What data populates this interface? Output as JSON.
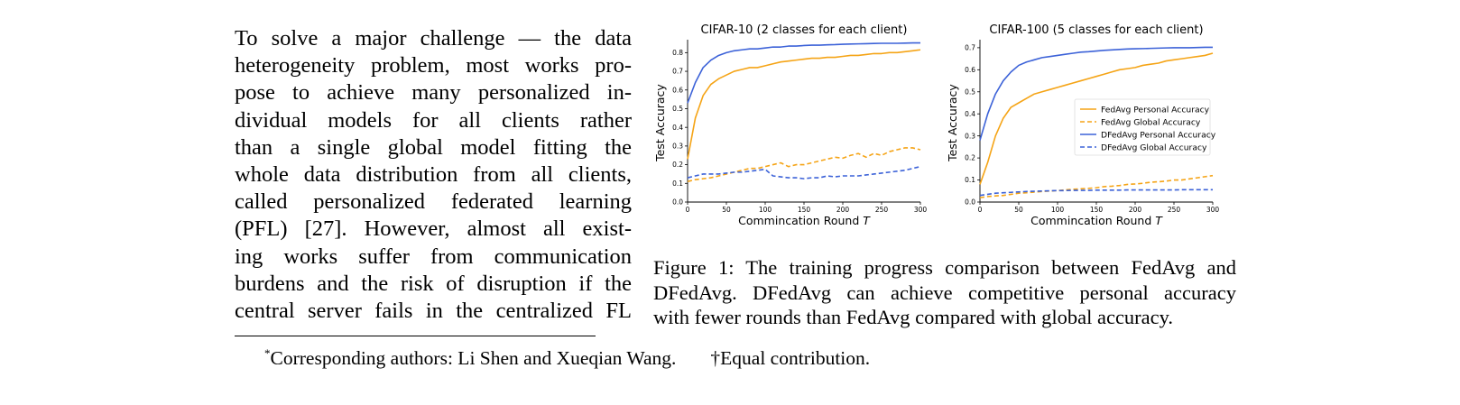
{
  "body": {
    "lines": [
      "To solve a major challenge — the data",
      "heterogeneity problem, most works pro-",
      "pose to achieve many personalized in-",
      "dividual models for all clients rather",
      "than a single global model fitting the",
      "whole data distribution from all clients,",
      "called personalized federated learning",
      "(PFL) [27].  However, almost all exist-",
      "ing works suffer from communication",
      "burdens and the risk of disruption if the",
      "central server fails in the centralized FL"
    ]
  },
  "caption": {
    "lines": [
      "Figure 1: The training progress comparison between FedAvg and",
      "DFedAvg. DFedAvg can achieve competitive personal accuracy",
      "with fewer rounds than FedAvg compared with global accuracy."
    ]
  },
  "footnote": {
    "marker": "*",
    "text": "Corresponding authors: Li Shen and Xueqian Wang.",
    "equal": "†Equal contribution."
  },
  "colors": {
    "fedavg": "#f5a416",
    "dfedavg": "#3c62d8"
  },
  "chart_data": [
    {
      "type": "line",
      "title": "CIFAR-10 (2 classes for each client)",
      "xlabel": "Commincation Round T",
      "ylabel": "Test Accuracy",
      "xlim": [
        0,
        300
      ],
      "ylim": [
        0,
        0.85
      ],
      "xticks": [
        0,
        50,
        100,
        150,
        200,
        250,
        300
      ],
      "yticks": [
        0.0,
        0.1,
        0.2,
        0.3,
        0.4,
        0.5,
        0.6,
        0.7,
        0.8
      ],
      "x": [
        0,
        10,
        20,
        30,
        40,
        50,
        60,
        70,
        80,
        90,
        100,
        110,
        120,
        130,
        140,
        150,
        160,
        170,
        180,
        190,
        200,
        210,
        220,
        230,
        240,
        250,
        260,
        270,
        280,
        290,
        300
      ],
      "series": [
        {
          "name": "FedAvg Personal Accuracy",
          "style": "solid",
          "color": "#f5a416",
          "values": [
            0.23,
            0.45,
            0.57,
            0.63,
            0.66,
            0.68,
            0.7,
            0.71,
            0.72,
            0.72,
            0.73,
            0.74,
            0.75,
            0.755,
            0.76,
            0.765,
            0.77,
            0.77,
            0.775,
            0.775,
            0.78,
            0.785,
            0.785,
            0.79,
            0.795,
            0.795,
            0.8,
            0.8,
            0.805,
            0.81,
            0.815
          ]
        },
        {
          "name": "FedAvg Global Accuracy",
          "style": "dashed",
          "color": "#f5a416",
          "values": [
            0.11,
            0.12,
            0.125,
            0.13,
            0.14,
            0.15,
            0.16,
            0.17,
            0.18,
            0.18,
            0.19,
            0.2,
            0.21,
            0.19,
            0.2,
            0.2,
            0.21,
            0.22,
            0.23,
            0.24,
            0.235,
            0.25,
            0.26,
            0.24,
            0.26,
            0.25,
            0.27,
            0.28,
            0.29,
            0.29,
            0.28
          ]
        },
        {
          "name": "DFedAvg Personal Accuracy",
          "style": "solid",
          "color": "#3c62d8",
          "values": [
            0.53,
            0.64,
            0.72,
            0.76,
            0.785,
            0.8,
            0.81,
            0.815,
            0.82,
            0.82,
            0.825,
            0.83,
            0.83,
            0.835,
            0.835,
            0.838,
            0.84,
            0.84,
            0.842,
            0.843,
            0.845,
            0.846,
            0.847,
            0.848,
            0.849,
            0.85,
            0.85,
            0.85,
            0.851,
            0.852,
            0.852
          ]
        },
        {
          "name": "DFedAvg Global Accuracy",
          "style": "dashed",
          "color": "#3c62d8",
          "values": [
            0.13,
            0.14,
            0.15,
            0.15,
            0.15,
            0.155,
            0.16,
            0.16,
            0.165,
            0.17,
            0.175,
            0.14,
            0.135,
            0.13,
            0.13,
            0.125,
            0.13,
            0.13,
            0.14,
            0.135,
            0.14,
            0.14,
            0.14,
            0.145,
            0.15,
            0.155,
            0.16,
            0.165,
            0.17,
            0.18,
            0.19
          ]
        }
      ]
    },
    {
      "type": "line",
      "title": "CIFAR-100 (5 classes for each client)",
      "xlabel": "Commincation Round T",
      "ylabel": "Test Accuracy",
      "xlim": [
        0,
        300
      ],
      "ylim": [
        0,
        0.72
      ],
      "xticks": [
        0,
        50,
        100,
        150,
        200,
        250,
        300
      ],
      "yticks": [
        0.0,
        0.1,
        0.2,
        0.3,
        0.4,
        0.5,
        0.6,
        0.7
      ],
      "legend": "center-right",
      "x": [
        0,
        10,
        20,
        30,
        40,
        50,
        60,
        70,
        80,
        90,
        100,
        110,
        120,
        130,
        140,
        150,
        160,
        170,
        180,
        190,
        200,
        210,
        220,
        230,
        240,
        250,
        260,
        270,
        280,
        290,
        300
      ],
      "series": [
        {
          "name": "FedAvg Personal Accuracy",
          "style": "solid",
          "color": "#f5a416",
          "values": [
            0.08,
            0.18,
            0.3,
            0.38,
            0.43,
            0.45,
            0.47,
            0.49,
            0.5,
            0.51,
            0.52,
            0.53,
            0.54,
            0.55,
            0.56,
            0.57,
            0.58,
            0.59,
            0.6,
            0.605,
            0.61,
            0.62,
            0.625,
            0.63,
            0.64,
            0.645,
            0.65,
            0.655,
            0.66,
            0.665,
            0.675
          ]
        },
        {
          "name": "FedAvg Global Accuracy",
          "style": "dashed",
          "color": "#f5a416",
          "values": [
            0.02,
            0.025,
            0.028,
            0.03,
            0.035,
            0.04,
            0.042,
            0.045,
            0.048,
            0.05,
            0.052,
            0.055,
            0.058,
            0.06,
            0.062,
            0.065,
            0.07,
            0.072,
            0.075,
            0.08,
            0.082,
            0.085,
            0.09,
            0.092,
            0.095,
            0.1,
            0.1,
            0.105,
            0.11,
            0.115,
            0.12
          ]
        },
        {
          "name": "DFedAvg Personal Accuracy",
          "style": "solid",
          "color": "#3c62d8",
          "values": [
            0.28,
            0.4,
            0.49,
            0.55,
            0.59,
            0.62,
            0.635,
            0.645,
            0.655,
            0.66,
            0.665,
            0.67,
            0.675,
            0.68,
            0.682,
            0.685,
            0.688,
            0.69,
            0.692,
            0.694,
            0.695,
            0.696,
            0.697,
            0.698,
            0.699,
            0.7,
            0.7,
            0.7,
            0.701,
            0.702,
            0.702
          ]
        },
        {
          "name": "DFedAvg Global Accuracy",
          "style": "dashed",
          "color": "#3c62d8",
          "values": [
            0.03,
            0.035,
            0.04,
            0.042,
            0.044,
            0.046,
            0.048,
            0.049,
            0.05,
            0.051,
            0.052,
            0.052,
            0.053,
            0.053,
            0.053,
            0.054,
            0.054,
            0.054,
            0.054,
            0.055,
            0.055,
            0.055,
            0.055,
            0.055,
            0.055,
            0.055,
            0.056,
            0.056,
            0.056,
            0.056,
            0.056
          ]
        }
      ]
    }
  ]
}
